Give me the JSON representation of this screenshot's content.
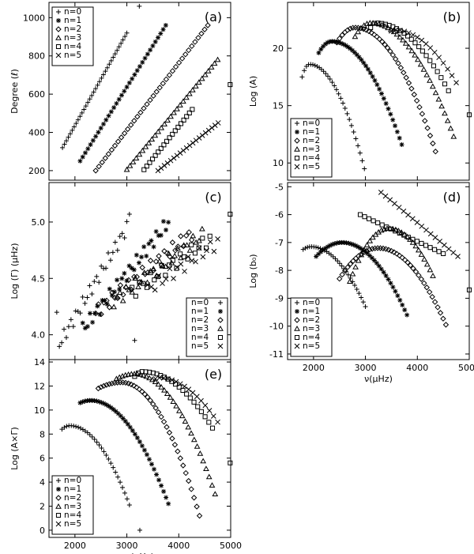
{
  "chart_data": [
    {
      "id": "a",
      "type": "scatter",
      "panel_label": "(a)",
      "ylabel": "Degree (ℓ)",
      "xlabel": "",
      "xlim": [
        1500,
        5000
      ],
      "ylim": [
        150,
        1080
      ],
      "xticks": [
        2000,
        3000,
        4000,
        5000
      ],
      "xticklabels": [
        "",
        "",
        "",
        ""
      ],
      "yticks": [
        200,
        400,
        600,
        800,
        1000
      ],
      "yticklabels": [
        "200",
        "400",
        "600",
        "800",
        "1000"
      ],
      "legend": {
        "pos": "top-left",
        "marker_side": "left",
        "labels": [
          "n=0",
          "n=1",
          "n=2",
          "n=3",
          "n=4",
          "n=5"
        ]
      },
      "series": [
        {
          "name": "n=0",
          "marker": "plus",
          "x": [
            1760,
            3000
          ],
          "y": [
            320,
            920
          ],
          "n": 34,
          "curve": "lin",
          "extra": [
            [
              3240,
              1060
            ]
          ]
        },
        {
          "name": "n=1",
          "marker": "asterisk",
          "x": [
            2100,
            3750
          ],
          "y": [
            250,
            960
          ],
          "n": 34,
          "curve": "lin"
        },
        {
          "name": "n=2",
          "marker": "diamond",
          "x": [
            2400,
            4560
          ],
          "y": [
            200,
            960
          ],
          "n": 36,
          "curve": "lin"
        },
        {
          "name": "n=3",
          "marker": "triangle",
          "x": [
            3000,
            4750
          ],
          "y": [
            205,
            780
          ],
          "n": 30,
          "curve": "lin"
        },
        {
          "name": "n=4",
          "marker": "square",
          "x": [
            3330,
            4260
          ],
          "y": [
            205,
            520
          ],
          "n": 18,
          "curve": "lin",
          "extra": [
            [
              4990,
              650
            ]
          ]
        },
        {
          "name": "n=5",
          "marker": "cross",
          "x": [
            3600,
            4760
          ],
          "y": [
            200,
            450
          ],
          "n": 20,
          "curve": "lin"
        }
      ]
    },
    {
      "id": "b",
      "type": "scatter",
      "panel_label": "(b)",
      "ylabel": "Log (A)",
      "xlabel": "",
      "xlim": [
        1500,
        5000
      ],
      "ylim": [
        8.5,
        24
      ],
      "xticks": [
        2000,
        3000,
        4000,
        5000
      ],
      "xticklabels": [
        "",
        "",
        "",
        ""
      ],
      "yticks": [
        10,
        15,
        20
      ],
      "yticklabels": [
        "10",
        "15",
        "20"
      ],
      "legend": {
        "pos": "bottom-left",
        "marker_side": "left",
        "labels": [
          "n=0",
          "n=1",
          "n=2",
          "n=3",
          "n=4",
          "n=5"
        ]
      },
      "series": [
        {
          "name": "n=0",
          "marker": "plus",
          "x": [
            1780,
            2980
          ],
          "y": [
            17.5,
            9.5
          ],
          "n": 30,
          "curve": "arc",
          "peak": [
            1920,
            18.6
          ]
        },
        {
          "name": "n=1",
          "marker": "asterisk",
          "x": [
            2100,
            3700
          ],
          "y": [
            19.6,
            11.6
          ],
          "n": 38,
          "curve": "arc",
          "peak": [
            2350,
            20.6
          ]
        },
        {
          "name": "n=2",
          "marker": "diamond",
          "x": [
            2450,
            4350
          ],
          "y": [
            20.5,
            11.0
          ],
          "n": 38,
          "curve": "arc",
          "peak": [
            2800,
            21.8
          ]
        },
        {
          "name": "n=3",
          "marker": "triangle",
          "x": [
            2800,
            4700
          ],
          "y": [
            21.0,
            12.3
          ],
          "n": 34,
          "curve": "arc",
          "peak": [
            3100,
            22.2
          ]
        },
        {
          "name": "n=4",
          "marker": "square",
          "x": [
            3100,
            4600
          ],
          "y": [
            21.8,
            16.3
          ],
          "n": 22,
          "curve": "arc",
          "peak": [
            3200,
            22.2
          ],
          "extra": [
            [
              5000,
              14.2
            ]
          ]
        },
        {
          "name": "n=5",
          "marker": "cross",
          "x": [
            3500,
            4750
          ],
          "y": [
            21.5,
            17.0
          ],
          "n": 16,
          "curve": "arc",
          "peak": [
            3550,
            21.6
          ]
        }
      ]
    },
    {
      "id": "c",
      "type": "scatter",
      "panel_label": "(c)",
      "ylabel": "Log (Γ) (μHz)",
      "xlabel": "",
      "xlim": [
        1500,
        5000
      ],
      "ylim": [
        3.78,
        5.35
      ],
      "xticks": [
        2000,
        3000,
        4000,
        5000
      ],
      "xticklabels": [
        "",
        "",
        "",
        ""
      ],
      "yticks": [
        4.0,
        4.5,
        5.0
      ],
      "yticklabels": [
        "4.0",
        "4.5",
        "5.0"
      ],
      "legend": {
        "pos": "bottom-right",
        "marker_side": "right",
        "labels": [
          "n=0",
          "n=1",
          "n=2",
          "n=3",
          "n=4",
          "n=5"
        ]
      },
      "series": [
        {
          "name": "n=0",
          "marker": "plus",
          "x": [
            1700,
            3000
          ],
          "y": [
            3.92,
            4.95
          ],
          "n": 30,
          "curve": "noisy",
          "extra": [
            [
              3050,
              5.07
            ],
            [
              3150,
              3.95
            ],
            [
              1650,
              4.2
            ]
          ]
        },
        {
          "name": "n=1",
          "marker": "asterisk",
          "x": [
            2150,
            3800
          ],
          "y": [
            4.05,
            5.0
          ],
          "n": 36,
          "curve": "noisy"
        },
        {
          "name": "n=2",
          "marker": "diamond",
          "x": [
            2400,
            4250
          ],
          "y": [
            4.2,
            4.9
          ],
          "n": 36,
          "curve": "noisy"
        },
        {
          "name": "n=3",
          "marker": "triangle",
          "x": [
            2750,
            4450
          ],
          "y": [
            4.3,
            4.88
          ],
          "n": 30,
          "curve": "noisy"
        },
        {
          "name": "n=4",
          "marker": "square",
          "x": [
            3100,
            4600
          ],
          "y": [
            4.38,
            4.85
          ],
          "n": 22,
          "curve": "noisy",
          "extra": [
            [
              4990,
              5.07
            ]
          ]
        },
        {
          "name": "n=5",
          "marker": "cross",
          "x": [
            3400,
            4750
          ],
          "y": [
            4.4,
            4.82
          ],
          "n": 20,
          "curve": "noisy"
        }
      ]
    },
    {
      "id": "d",
      "type": "scatter",
      "panel_label": "(d)",
      "ylabel": "Log (b₀)",
      "xlabel": "ν(μHz)",
      "xlim": [
        1500,
        5000
      ],
      "ylim": [
        -11.2,
        -4.85
      ],
      "xticks": [
        2000,
        3000,
        4000,
        5000
      ],
      "xticklabels": [
        "2000",
        "3000",
        "4000",
        "5000"
      ],
      "yticks": [
        -11,
        -10,
        -9,
        -8,
        -7,
        -6,
        -5
      ],
      "yticklabels": [
        "-11",
        "-10",
        "-9",
        "-8",
        "-7",
        "-6",
        "-5"
      ],
      "legend": {
        "pos": "bottom-left",
        "marker_side": "left",
        "labels": [
          "n=0",
          "n=1",
          "n=2",
          "n=3",
          "n=4",
          "n=5"
        ]
      },
      "series": [
        {
          "name": "n=0",
          "marker": "plus",
          "x": [
            1800,
            3000
          ],
          "y": [
            -7.25,
            -9.3
          ],
          "n": 30,
          "curve": "arc",
          "peak": [
            1950,
            -7.15
          ]
        },
        {
          "name": "n=1",
          "marker": "asterisk",
          "x": [
            2050,
            3800
          ],
          "y": [
            -7.5,
            -9.6
          ],
          "n": 40,
          "curve": "arc",
          "peak": [
            2550,
            -7.0
          ]
        },
        {
          "name": "n=2",
          "marker": "diamond",
          "x": [
            2500,
            4550
          ],
          "y": [
            -8.3,
            -9.95
          ],
          "n": 40,
          "curve": "arc",
          "peak": [
            3250,
            -7.2
          ]
        },
        {
          "name": "n=3",
          "marker": "triangle",
          "x": [
            2700,
            4300
          ],
          "y": [
            -8.4,
            -8.2
          ],
          "n": 30,
          "curve": "arc",
          "peak": [
            3450,
            -6.5
          ]
        },
        {
          "name": "n=4",
          "marker": "square",
          "x": [
            2900,
            4500
          ],
          "y": [
            -6.0,
            -7.4
          ],
          "n": 20,
          "curve": "lin",
          "extra": [
            [
              5000,
              -8.7
            ]
          ]
        },
        {
          "name": "n=5",
          "marker": "cross",
          "x": [
            3300,
            4780
          ],
          "y": [
            -5.2,
            -7.5
          ],
          "n": 18,
          "curve": "lin"
        }
      ]
    },
    {
      "id": "e",
      "type": "scatter",
      "panel_label": "(e)",
      "ylabel": "Log (A×Γ)",
      "xlabel": "ν(μHz)",
      "xlim": [
        1500,
        5000
      ],
      "ylim": [
        -0.6,
        14.2
      ],
      "xticks": [
        2000,
        3000,
        4000,
        5000
      ],
      "xticklabels": [
        "2000",
        "3000",
        "4000",
        "5000"
      ],
      "yticks": [
        0,
        2,
        4,
        6,
        8,
        10,
        12,
        14
      ],
      "yticklabels": [
        "0",
        "2",
        "4",
        "6",
        "8",
        "10",
        "12",
        "14"
      ],
      "legend": {
        "pos": "bottom-left",
        "marker_side": "left",
        "labels": [
          "n=0",
          "n=1",
          "n=2",
          "n=3",
          "n=4",
          "n=5"
        ]
      },
      "series": [
        {
          "name": "n=0",
          "marker": "plus",
          "x": [
            1750,
            3050
          ],
          "y": [
            8.4,
            2.1
          ],
          "n": 30,
          "curve": "arc",
          "peak": [
            1900,
            8.7
          ],
          "extra": [
            [
              3250,
              0.0
            ]
          ]
        },
        {
          "name": "n=1",
          "marker": "asterisk",
          "x": [
            2100,
            3800
          ],
          "y": [
            10.6,
            2.2
          ],
          "n": 38,
          "curve": "arc",
          "peak": [
            2300,
            10.8
          ]
        },
        {
          "name": "n=2",
          "marker": "diamond",
          "x": [
            2450,
            4400
          ],
          "y": [
            11.8,
            1.2
          ],
          "n": 38,
          "curve": "arc",
          "peak": [
            2900,
            12.3
          ]
        },
        {
          "name": "n=3",
          "marker": "triangle",
          "x": [
            2800,
            4700
          ],
          "y": [
            12.6,
            3.0
          ],
          "n": 34,
          "curve": "arc",
          "peak": [
            3150,
            13.0
          ]
        },
        {
          "name": "n=4",
          "marker": "square",
          "x": [
            3150,
            4650
          ],
          "y": [
            12.8,
            8.5
          ],
          "n": 22,
          "curve": "arc",
          "peak": [
            3300,
            13.2
          ],
          "extra": [
            [
              4990,
              5.6
            ]
          ]
        },
        {
          "name": "n=5",
          "marker": "cross",
          "x": [
            3550,
            4750
          ],
          "y": [
            12.6,
            9.0
          ],
          "n": 16,
          "curve": "arc",
          "peak": [
            3600,
            12.7
          ]
        }
      ]
    }
  ]
}
